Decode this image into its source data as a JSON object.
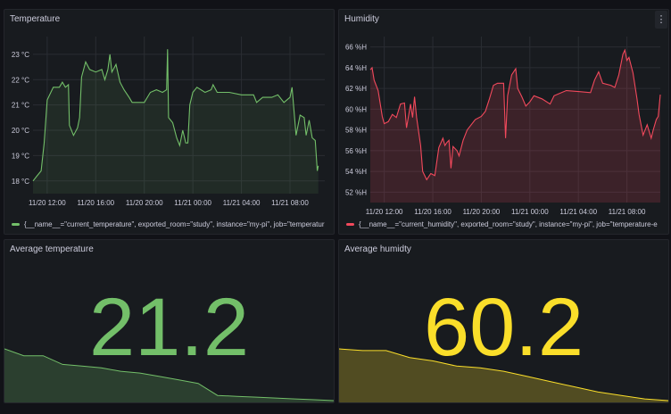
{
  "panels": {
    "temperature": {
      "title": "Temperature",
      "legend": "{__name__=\"current_temperature\", exported_room=\"study\", instance=\"my-pi\", job=\"temperatur",
      "color": "#73bf69"
    },
    "humidity": {
      "title": "Humidity",
      "menu_icon": "kebab-menu-icon",
      "legend": "{__name__=\"current_humidity\", exported_room=\"study\", instance=\"my-pi\", job=\"temperature-e",
      "color": "#f2495c"
    },
    "avg_temperature": {
      "title": "Average temperature",
      "value": "21.2",
      "color": "#73bf69"
    },
    "avg_humidity": {
      "title": "Average humidty",
      "value": "60.2",
      "color": "#fade2a"
    }
  },
  "chart_data": [
    {
      "type": "line",
      "title": "Temperature",
      "unit": "°C",
      "ylim": [
        17.5,
        23.7
      ],
      "yticks": [
        "18 °C",
        "19 °C",
        "20 °C",
        "21 °C",
        "22 °C",
        "23 °C"
      ],
      "xticks": [
        "11/20 12:00",
        "11/20 16:00",
        "11/20 20:00",
        "11/21 00:00",
        "11/21 04:00",
        "11/21 08:00"
      ],
      "xlim": [
        "11/20 10:50",
        "11/21 10:52"
      ],
      "grid": true,
      "legend_placement": "bottom",
      "points": [
        [
          "11/20 10:50",
          18.0
        ],
        [
          "11/20 11:10",
          18.2
        ],
        [
          "11/20 11:30",
          18.4
        ],
        [
          "11/20 11:45",
          19.5
        ],
        [
          "11/20 12:00",
          21.2
        ],
        [
          "11/20 12:30",
          21.7
        ],
        [
          "11/20 13:00",
          21.7
        ],
        [
          "11/20 13:15",
          21.9
        ],
        [
          "11/20 13:30",
          21.7
        ],
        [
          "11/20 13:45",
          21.8
        ],
        [
          "11/20 13:50",
          20.2
        ],
        [
          "11/20 14:10",
          19.8
        ],
        [
          "11/20 14:30",
          20.1
        ],
        [
          "11/20 14:40",
          20.5
        ],
        [
          "11/20 14:50",
          22.1
        ],
        [
          "11/20 15:10",
          22.7
        ],
        [
          "11/20 15:30",
          22.4
        ],
        [
          "11/20 16:00",
          22.3
        ],
        [
          "11/20 16:30",
          22.4
        ],
        [
          "11/20 16:45",
          22.0
        ],
        [
          "11/20 17:00",
          22.4
        ],
        [
          "11/20 17:10",
          23.0
        ],
        [
          "11/20 17:20",
          22.3
        ],
        [
          "11/20 17:40",
          22.6
        ],
        [
          "11/20 18:00",
          21.9
        ],
        [
          "11/20 18:20",
          21.6
        ],
        [
          "11/20 18:45",
          21.3
        ],
        [
          "11/20 19:00",
          21.1
        ],
        [
          "11/20 20:00",
          21.1
        ],
        [
          "11/20 20:30",
          21.5
        ],
        [
          "11/20 21:00",
          21.6
        ],
        [
          "11/20 21:30",
          21.5
        ],
        [
          "11/20 21:50",
          21.6
        ],
        [
          "11/20 21:55",
          23.2
        ],
        [
          "11/20 22:00",
          20.5
        ],
        [
          "11/20 22:20",
          20.3
        ],
        [
          "11/20 22:40",
          19.7
        ],
        [
          "11/20 22:55",
          19.4
        ],
        [
          "11/20 23:10",
          20.0
        ],
        [
          "11/20 23:25",
          19.5
        ],
        [
          "11/20 23:35",
          19.5
        ],
        [
          "11/20 23:45",
          21.0
        ],
        [
          "11/21 00:00",
          21.5
        ],
        [
          "11/21 00:20",
          21.7
        ],
        [
          "11/21 01:00",
          21.5
        ],
        [
          "11/21 01:30",
          21.6
        ],
        [
          "11/21 01:40",
          21.8
        ],
        [
          "11/21 02:00",
          21.5
        ],
        [
          "11/21 03:00",
          21.5
        ],
        [
          "11/21 04:00",
          21.4
        ],
        [
          "11/21 05:00",
          21.4
        ],
        [
          "11/21 05:15",
          21.1
        ],
        [
          "11/21 05:45",
          21.3
        ],
        [
          "11/21 06:30",
          21.3
        ],
        [
          "11/21 07:00",
          21.4
        ],
        [
          "11/21 07:30",
          21.1
        ],
        [
          "11/21 08:00",
          21.3
        ],
        [
          "11/21 08:10",
          21.7
        ],
        [
          "11/21 08:30",
          19.8
        ],
        [
          "11/21 08:50",
          20.6
        ],
        [
          "11/21 09:10",
          20.5
        ],
        [
          "11/21 09:20",
          19.8
        ],
        [
          "11/21 09:35",
          20.4
        ],
        [
          "11/21 09:50",
          19.7
        ],
        [
          "11/21 10:05",
          19.6
        ],
        [
          "11/21 10:15",
          18.4
        ],
        [
          "11/21 10:20",
          18.6
        ]
      ]
    },
    {
      "type": "line",
      "title": "Humidity",
      "unit": "%H",
      "ylim": [
        51,
        67
      ],
      "yticks": [
        "52 %H",
        "54 %H",
        "56 %H",
        "58 %H",
        "60 %H",
        "62 %H",
        "64 %H",
        "66 %H"
      ],
      "xticks": [
        "11/20 12:00",
        "11/20 16:00",
        "11/20 20:00",
        "11/21 00:00",
        "11/21 04:00",
        "11/21 08:00"
      ],
      "xlim": [
        "11/20 10:51",
        "11/21 10:45"
      ],
      "grid": true,
      "legend_placement": "bottom",
      "points": [
        [
          "11/20 10:51",
          63.8
        ],
        [
          "11/20 11:00",
          64.0
        ],
        [
          "11/20 11:10",
          62.8
        ],
        [
          "11/20 11:30",
          61.8
        ],
        [
          "11/20 11:50",
          59.3
        ],
        [
          "11/20 12:00",
          58.6
        ],
        [
          "11/20 12:20",
          58.8
        ],
        [
          "11/20 12:40",
          59.5
        ],
        [
          "11/20 13:00",
          59.2
        ],
        [
          "11/20 13:20",
          60.5
        ],
        [
          "11/20 13:40",
          60.6
        ],
        [
          "11/20 13:50",
          58.2
        ],
        [
          "11/20 14:10",
          60.5
        ],
        [
          "11/20 14:20",
          59.2
        ],
        [
          "11/20 14:30",
          61.2
        ],
        [
          "11/20 14:40",
          59.2
        ],
        [
          "11/20 15:00",
          56.5
        ],
        [
          "11/20 15:10",
          54.0
        ],
        [
          "11/20 15:30",
          53.2
        ],
        [
          "11/20 15:50",
          53.8
        ],
        [
          "11/20 16:10",
          53.6
        ],
        [
          "11/20 16:30",
          56.3
        ],
        [
          "11/20 16:50",
          57.2
        ],
        [
          "11/20 17:00",
          56.5
        ],
        [
          "11/20 17:10",
          56.8
        ],
        [
          "11/20 17:20",
          57.0
        ],
        [
          "11/20 17:30",
          54.3
        ],
        [
          "11/20 17:40",
          56.4
        ],
        [
          "11/20 18:00",
          56.0
        ],
        [
          "11/20 18:10",
          55.5
        ],
        [
          "11/20 18:30",
          57.0
        ],
        [
          "11/20 18:50",
          58.0
        ],
        [
          "11/20 19:10",
          58.5
        ],
        [
          "11/20 19:30",
          59.0
        ],
        [
          "11/20 20:00",
          59.3
        ],
        [
          "11/20 20:20",
          59.8
        ],
        [
          "11/20 20:40",
          61.0
        ],
        [
          "11/20 21:00",
          62.3
        ],
        [
          "11/20 21:20",
          62.5
        ],
        [
          "11/20 21:50",
          62.5
        ],
        [
          "11/20 22:00",
          57.2
        ],
        [
          "11/20 22:10",
          61.3
        ],
        [
          "11/20 22:30",
          63.3
        ],
        [
          "11/20 22:50",
          63.9
        ],
        [
          "11/20 23:00",
          62.0
        ],
        [
          "11/20 23:20",
          61.2
        ],
        [
          "11/20 23:40",
          60.3
        ],
        [
          "11/21 00:00",
          60.7
        ],
        [
          "11/21 00:20",
          61.3
        ],
        [
          "11/21 01:00",
          61.0
        ],
        [
          "11/21 01:40",
          60.5
        ],
        [
          "11/21 02:00",
          61.3
        ],
        [
          "11/21 03:00",
          61.8
        ],
        [
          "11/21 04:00",
          61.7
        ],
        [
          "11/21 05:00",
          61.6
        ],
        [
          "11/21 05:20",
          62.8
        ],
        [
          "11/21 05:40",
          63.6
        ],
        [
          "11/21 06:00",
          62.5
        ],
        [
          "11/21 06:40",
          62.3
        ],
        [
          "11/21 07:00",
          62.1
        ],
        [
          "11/21 07:20",
          63.3
        ],
        [
          "11/21 07:40",
          65.3
        ],
        [
          "11/21 07:50",
          65.7
        ],
        [
          "11/21 08:00",
          64.7
        ],
        [
          "11/21 08:10",
          65.0
        ],
        [
          "11/21 08:30",
          63.5
        ],
        [
          "11/21 08:50",
          61.0
        ],
        [
          "11/21 09:00",
          59.5
        ],
        [
          "11/21 09:20",
          57.5
        ],
        [
          "11/21 09:40",
          58.5
        ],
        [
          "11/21 10:00",
          57.2
        ],
        [
          "11/21 10:10",
          58.0
        ],
        [
          "11/21 10:25",
          59.0
        ],
        [
          "11/21 10:35",
          59.3
        ],
        [
          "11/21 10:45",
          61.4
        ]
      ]
    }
  ],
  "sparklines": {
    "avg_temperature": [
      0.3,
      0.26,
      0.26,
      0.21,
      0.2,
      0.19,
      0.17,
      0.16,
      0.14,
      0.12,
      0.1,
      0.03,
      0.025,
      0.02,
      0.015,
      0.01,
      0.005,
      0.0
    ],
    "avg_humidity": [
      0.3,
      0.29,
      0.29,
      0.25,
      0.23,
      0.2,
      0.19,
      0.17,
      0.14,
      0.11,
      0.08,
      0.05,
      0.03,
      0.01,
      0.0
    ]
  }
}
